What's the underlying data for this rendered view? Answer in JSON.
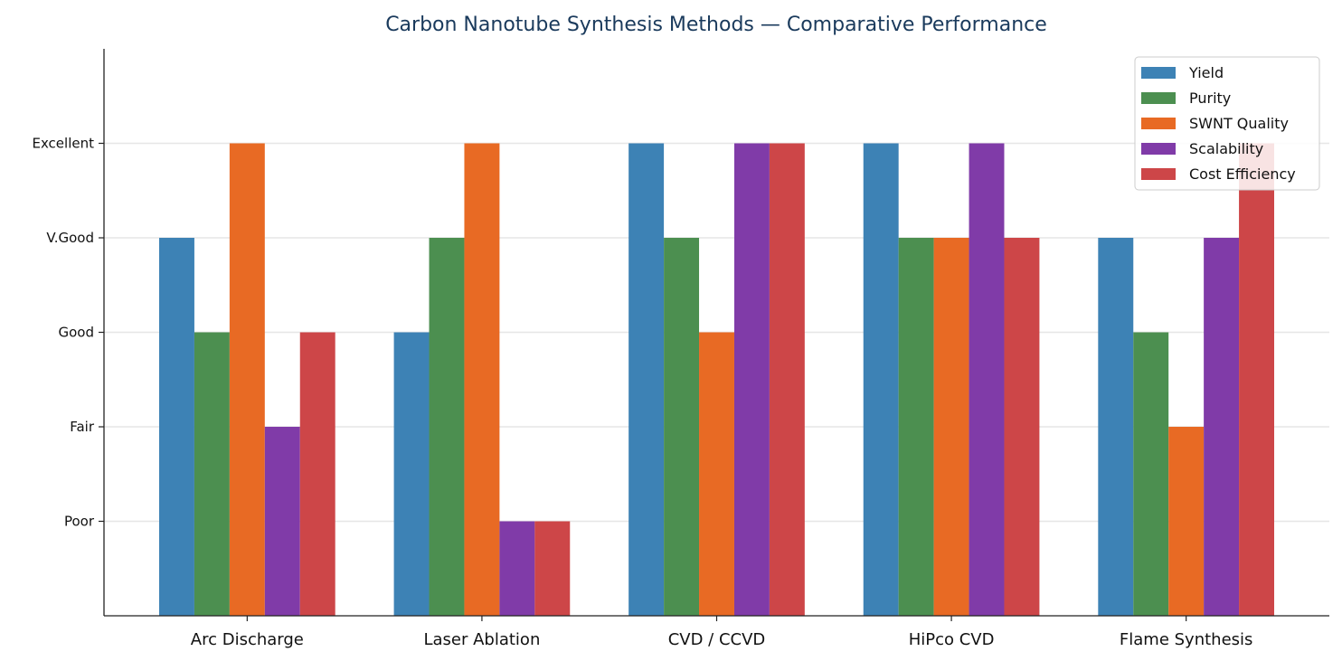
{
  "chart_data": {
    "type": "bar",
    "title": "Carbon Nanotube Synthesis Methods — Comparative Performance",
    "xlabel": "",
    "ylabel": "",
    "categories": [
      "Arc Discharge",
      "Laser Ablation",
      "CVD / CCVD",
      "HiPco CVD",
      "Flame Synthesis"
    ],
    "yticks": [
      {
        "value": 1,
        "label": "Poor"
      },
      {
        "value": 2,
        "label": "Fair"
      },
      {
        "value": 3,
        "label": "Good"
      },
      {
        "value": 4,
        "label": "V.Good"
      },
      {
        "value": 5,
        "label": "Excellent"
      }
    ],
    "ylim": [
      0,
      6
    ],
    "grid": "horizontal",
    "legend_position": "top-right",
    "series": [
      {
        "name": "Yield",
        "color": "#3d82b5",
        "values": [
          4,
          3,
          5,
          5,
          4
        ]
      },
      {
        "name": "Purity",
        "color": "#4c8f50",
        "values": [
          3,
          4,
          4,
          4,
          3
        ]
      },
      {
        "name": "SWNT Quality",
        "color": "#e86a24",
        "values": [
          5,
          5,
          3,
          4,
          2
        ]
      },
      {
        "name": "Scalability",
        "color": "#803ba8",
        "values": [
          2,
          1,
          5,
          5,
          4
        ]
      },
      {
        "name": "Cost Efficiency",
        "color": "#cd4648",
        "values": [
          3,
          1,
          5,
          4,
          5
        ]
      }
    ]
  }
}
